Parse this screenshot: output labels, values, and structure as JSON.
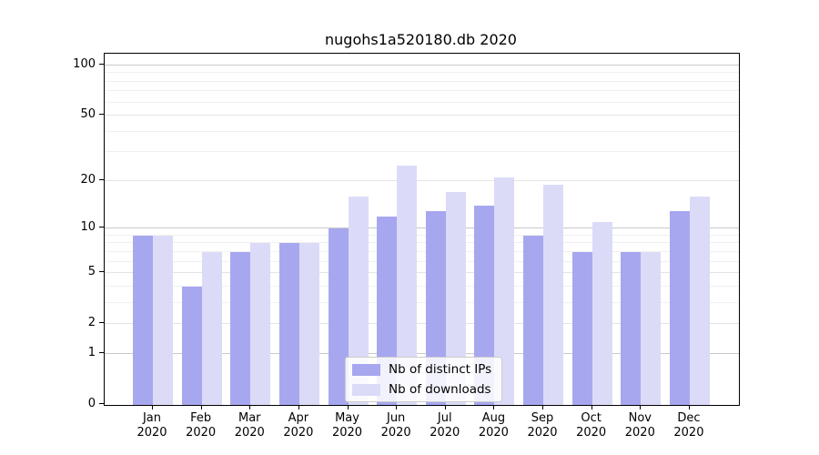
{
  "title": "nugohs1a520180.db 2020",
  "legend": {
    "items": [
      {
        "label": "Nb of distinct IPs",
        "color": "#a7a7f0"
      },
      {
        "label": "Nb of downloads",
        "color": "#dbdbf8"
      }
    ]
  },
  "y_axis": {
    "tick_values": [
      0,
      1,
      2,
      5,
      10,
      20,
      50,
      100
    ],
    "tick_labels": [
      "0",
      "1",
      "2",
      "5",
      "10",
      "20",
      "50",
      "100"
    ]
  },
  "x_axis": {
    "months": [
      "Jan",
      "Feb",
      "Mar",
      "Apr",
      "May",
      "Jun",
      "Jul",
      "Aug",
      "Sep",
      "Oct",
      "Nov",
      "Dec"
    ],
    "year": "2020"
  },
  "chart_data": {
    "type": "bar",
    "title": "nugohs1a520180.db 2020",
    "categories": [
      "Jan 2020",
      "Feb 2020",
      "Mar 2020",
      "Apr 2020",
      "May 2020",
      "Jun 2020",
      "Jul 2020",
      "Aug 2020",
      "Sep 2020",
      "Oct 2020",
      "Nov 2020",
      "Dec 2020"
    ],
    "series": [
      {
        "name": "Nb of distinct IPs",
        "color": "#a7a7f0",
        "values": [
          9,
          4,
          7,
          8,
          10,
          12,
          13,
          14,
          9,
          7,
          7,
          13
        ]
      },
      {
        "name": "Nb of downloads",
        "color": "#dbdbf8",
        "values": [
          9,
          7,
          8,
          8,
          16,
          25,
          17,
          21,
          19,
          11,
          7,
          16
        ]
      }
    ],
    "yscale": "log1p",
    "yticks": [
      0,
      1,
      2,
      5,
      10,
      20,
      50,
      100
    ],
    "ylim": [
      0,
      100
    ],
    "grid": true,
    "legend_position": "lower center"
  }
}
